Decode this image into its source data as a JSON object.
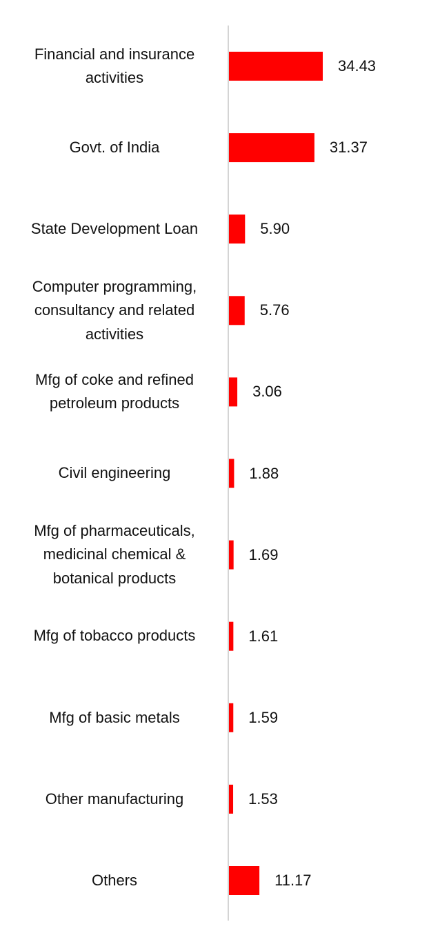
{
  "chart_data": {
    "type": "bar",
    "orientation": "horizontal",
    "categories": [
      [
        "Financial and insurance",
        "activities"
      ],
      [
        "Govt. of India"
      ],
      [
        "State Development Loan"
      ],
      [
        "Computer programming,",
        "consultancy and related",
        "activities"
      ],
      [
        "Mfg of coke and refined",
        "petroleum products"
      ],
      [
        "Civil engineering"
      ],
      [
        "Mfg of pharmaceuticals,",
        "medicinal chemical &",
        "botanical products"
      ],
      [
        "Mfg of tobacco products"
      ],
      [
        "Mfg of basic metals"
      ],
      [
        "Other manufacturing"
      ],
      [
        "Others"
      ]
    ],
    "values": [
      34.43,
      31.37,
      5.9,
      5.76,
      3.06,
      1.88,
      1.69,
      1.61,
      1.59,
      1.53,
      11.17
    ],
    "value_labels": [
      "34.43",
      "31.37",
      "5.90",
      "5.76",
      "3.06",
      "1.88",
      "1.69",
      "1.61",
      "1.59",
      "1.53",
      "11.17"
    ],
    "bar_color": "#ff0000",
    "axis_color": "#d4d4d4",
    "grid": false,
    "legend": "none"
  }
}
